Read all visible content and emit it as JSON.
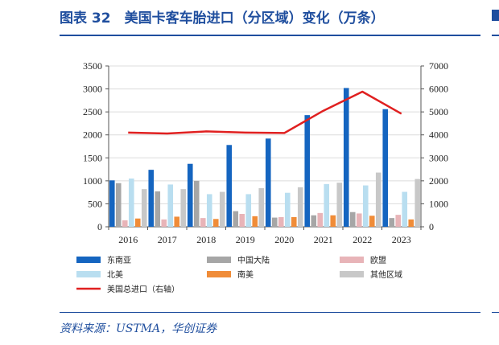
{
  "header": {
    "title": "图表 32　美国卡客车胎进口（分区域）变化（万条）"
  },
  "footer": {
    "source": "资料来源：USTMA，华创证券"
  },
  "chart_data": {
    "type": "bar",
    "categories": [
      "2016",
      "2017",
      "2018",
      "2019",
      "2020",
      "2021",
      "2022",
      "2023"
    ],
    "ylim": [
      0,
      3500
    ],
    "y_ticks": [
      "0",
      "500",
      "1000",
      "1500",
      "2000",
      "2500",
      "3000",
      "3500"
    ],
    "y2lim": [
      0,
      7000
    ],
    "y2_ticks": [
      "0",
      "1000",
      "2000",
      "3000",
      "4000",
      "5000",
      "6000",
      "7000"
    ],
    "grid": true,
    "legend_position": "bottom",
    "series": [
      {
        "name": "东南亚",
        "color": "#1565c0",
        "values": [
          1010,
          1240,
          1370,
          1780,
          1920,
          2430,
          3020,
          2560
        ]
      },
      {
        "name": "中国大陆",
        "color": "#a6a6a6",
        "values": [
          950,
          770,
          1000,
          340,
          200,
          250,
          320,
          190
        ]
      },
      {
        "name": "欧盟",
        "color": "#e8b4b8",
        "values": [
          140,
          160,
          190,
          280,
          210,
          300,
          290,
          260
        ]
      },
      {
        "name": "北美",
        "color": "#b9def0",
        "values": [
          1050,
          920,
          710,
          710,
          740,
          930,
          900,
          760
        ]
      },
      {
        "name": "南美",
        "color": "#f08c38",
        "values": [
          180,
          220,
          170,
          230,
          210,
          250,
          240,
          160
        ]
      },
      {
        "name": "其他区域",
        "color": "#c8c8c8",
        "values": [
          820,
          820,
          760,
          840,
          860,
          960,
          1180,
          1040
        ]
      }
    ],
    "line_series": {
      "name": "美国总进口（右轴）",
      "color": "#e02020",
      "axis": "right",
      "values": [
        4100,
        4060,
        4150,
        4100,
        4080,
        5050,
        5880,
        4920
      ]
    }
  }
}
